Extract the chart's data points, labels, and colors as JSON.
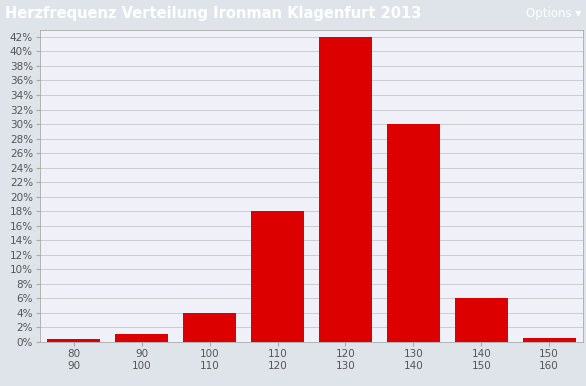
{
  "title": "Herzfrequenz Verteilung Ironman Klagenfurt 2013",
  "title_bg_color": "#2255cc",
  "title_text_color": "#ffffff",
  "options_text": "Options ▾",
  "bar_labels": [
    "80\n90",
    "90\n100",
    "100\n110",
    "110\n120",
    "120\n130",
    "130\n140",
    "140\n150",
    "150\n160"
  ],
  "bar_values": [
    0.3,
    1.0,
    4.0,
    18.0,
    42.0,
    30.0,
    6.0,
    0.5
  ],
  "bar_color": "#dd0000",
  "bar_edge_color": "#dd0000",
  "bg_color": "#dfe3ea",
  "plot_bg_color": "#f0f0f8",
  "grid_color": "#cccccc",
  "yticks": [
    0,
    2,
    4,
    6,
    8,
    10,
    12,
    14,
    16,
    18,
    20,
    22,
    24,
    26,
    28,
    30,
    32,
    34,
    36,
    38,
    40,
    42
  ],
  "ylim": [
    0,
    43
  ],
  "tick_label_color": "#555555",
  "tick_label_fontsize": 7.5,
  "axis_line_color": "#aaaaaa",
  "title_fontsize": 10.5,
  "options_fontsize": 8.5,
  "figsize": [
    5.86,
    3.86
  ],
  "dpi": 100
}
